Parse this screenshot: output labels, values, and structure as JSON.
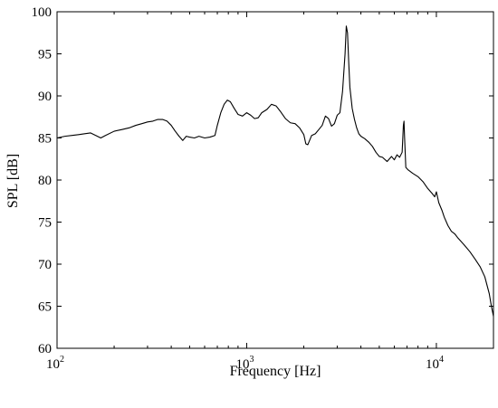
{
  "chart_data": {
    "type": "line",
    "title": "",
    "xlabel": "Frequency [Hz]",
    "ylabel": "SPL [dB]",
    "xscale": "log",
    "xlim": [
      100,
      20000
    ],
    "ylim": [
      60,
      100
    ],
    "grid": false,
    "legend": "none",
    "xticks": [
      {
        "base": "10",
        "exp": "2"
      },
      {
        "base": "10",
        "exp": "3"
      },
      {
        "base": "10",
        "exp": "4"
      }
    ],
    "yticks": [
      "60",
      "65",
      "70",
      "75",
      "80",
      "85",
      "90",
      "95",
      "100"
    ],
    "series": [
      {
        "color": "#000000",
        "points": [
          [
            100,
            85.0
          ],
          [
            110,
            85.2
          ],
          [
            120,
            85.3
          ],
          [
            130,
            85.4
          ],
          [
            140,
            85.5
          ],
          [
            150,
            85.6
          ],
          [
            160,
            85.3
          ],
          [
            170,
            85.0
          ],
          [
            180,
            85.3
          ],
          [
            200,
            85.8
          ],
          [
            220,
            86.0
          ],
          [
            240,
            86.2
          ],
          [
            260,
            86.5
          ],
          [
            280,
            86.7
          ],
          [
            300,
            86.9
          ],
          [
            320,
            87.0
          ],
          [
            340,
            87.2
          ],
          [
            360,
            87.2
          ],
          [
            380,
            87.0
          ],
          [
            400,
            86.5
          ],
          [
            420,
            85.8
          ],
          [
            440,
            85.2
          ],
          [
            460,
            84.7
          ],
          [
            480,
            85.2
          ],
          [
            500,
            85.1
          ],
          [
            530,
            85.0
          ],
          [
            560,
            85.2
          ],
          [
            600,
            85.0
          ],
          [
            640,
            85.1
          ],
          [
            680,
            85.3
          ],
          [
            700,
            86.5
          ],
          [
            730,
            88.0
          ],
          [
            760,
            89.0
          ],
          [
            790,
            89.5
          ],
          [
            820,
            89.3
          ],
          [
            860,
            88.5
          ],
          [
            900,
            87.8
          ],
          [
            950,
            87.6
          ],
          [
            1000,
            88.0
          ],
          [
            1050,
            87.7
          ],
          [
            1100,
            87.3
          ],
          [
            1150,
            87.4
          ],
          [
            1200,
            88.0
          ],
          [
            1280,
            88.4
          ],
          [
            1350,
            89.0
          ],
          [
            1430,
            88.8
          ],
          [
            1500,
            88.2
          ],
          [
            1600,
            87.3
          ],
          [
            1700,
            86.8
          ],
          [
            1800,
            86.7
          ],
          [
            1900,
            86.2
          ],
          [
            2000,
            85.4
          ],
          [
            2050,
            84.3
          ],
          [
            2100,
            84.2
          ],
          [
            2200,
            85.3
          ],
          [
            2300,
            85.5
          ],
          [
            2400,
            86.0
          ],
          [
            2500,
            86.5
          ],
          [
            2600,
            87.6
          ],
          [
            2700,
            87.3
          ],
          [
            2800,
            86.4
          ],
          [
            2900,
            86.7
          ],
          [
            3000,
            87.7
          ],
          [
            3100,
            88.0
          ],
          [
            3200,
            90.5
          ],
          [
            3300,
            95.0
          ],
          [
            3350,
            98.3
          ],
          [
            3400,
            97.5
          ],
          [
            3450,
            94.0
          ],
          [
            3500,
            91.0
          ],
          [
            3600,
            88.5
          ],
          [
            3700,
            87.2
          ],
          [
            3800,
            86.2
          ],
          [
            3900,
            85.5
          ],
          [
            4000,
            85.2
          ],
          [
            4200,
            84.9
          ],
          [
            4400,
            84.5
          ],
          [
            4600,
            84.0
          ],
          [
            4800,
            83.3
          ],
          [
            5000,
            82.8
          ],
          [
            5200,
            82.7
          ],
          [
            5500,
            82.2
          ],
          [
            5800,
            82.8
          ],
          [
            6000,
            82.4
          ],
          [
            6200,
            83.0
          ],
          [
            6400,
            82.7
          ],
          [
            6600,
            83.3
          ],
          [
            6700,
            86.5
          ],
          [
            6750,
            87.0
          ],
          [
            6800,
            85.0
          ],
          [
            6900,
            81.5
          ],
          [
            7100,
            81.2
          ],
          [
            7500,
            80.8
          ],
          [
            8000,
            80.4
          ],
          [
            8500,
            79.8
          ],
          [
            9000,
            79.0
          ],
          [
            9500,
            78.4
          ],
          [
            9800,
            78.0
          ],
          [
            10000,
            78.6
          ],
          [
            10300,
            77.3
          ],
          [
            10700,
            76.4
          ],
          [
            11000,
            75.6
          ],
          [
            11500,
            74.6
          ],
          [
            12000,
            73.9
          ],
          [
            12500,
            73.6
          ],
          [
            13000,
            73.1
          ],
          [
            14000,
            72.3
          ],
          [
            15000,
            71.5
          ],
          [
            16000,
            70.6
          ],
          [
            17000,
            69.7
          ],
          [
            18000,
            68.5
          ],
          [
            19000,
            66.5
          ],
          [
            19500,
            65.0
          ],
          [
            20000,
            63.8
          ]
        ]
      }
    ]
  }
}
